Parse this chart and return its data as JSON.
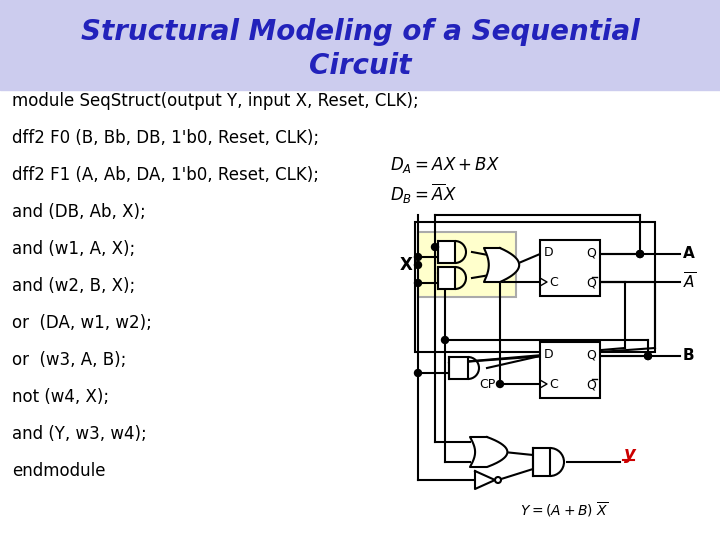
{
  "title_line1": "Structural Modeling of a Sequential",
  "title_line2": "Circuit",
  "title_color": "#2222bb",
  "title_bg": "#ccccee",
  "title_fs": 20,
  "code_lines": [
    "module SeqStruct(output Y, input X, Reset, CLK);",
    "dff2 F0 (B, Bb, DB, 1'b0, Reset, CLK);",
    "dff2 F1 (A, Ab, DA, 1'b0, Reset, CLK);",
    "and (DB, Ab, X);",
    "and (w1, A, X);",
    "and (w2, B, X);",
    "or  (DA, w1, w2);",
    "or  (w3, A, B);",
    "not (w4, X);",
    "and (Y, w3, w4);",
    "endmodule"
  ],
  "code_fs": 12,
  "bg": "#ffffff",
  "blk": "#000000",
  "red": "#cc0000",
  "yfill": "#ffffcc",
  "yedge": "#aaaaaa"
}
